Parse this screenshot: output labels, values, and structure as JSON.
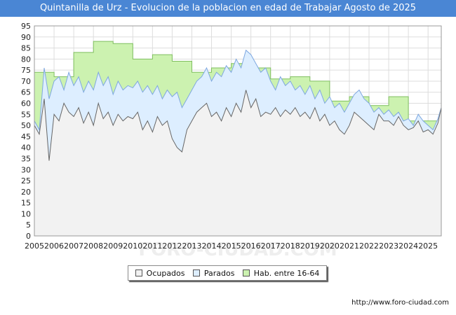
{
  "chart_data": {
    "type": "area",
    "title": "Quintanilla de Urz - Evolucion de la poblacion en edad de Trabajar Agosto de 2025",
    "ylim": [
      0,
      95
    ],
    "yticks": [
      0,
      5,
      10,
      15,
      20,
      25,
      30,
      35,
      40,
      45,
      50,
      55,
      60,
      65,
      70,
      75,
      80,
      85,
      90,
      95
    ],
    "xlim": [
      2005,
      2025.67
    ],
    "xticks": [
      "2005",
      "2006",
      "2007",
      "2008",
      "2009",
      "2010",
      "2011",
      "2012",
      "2013",
      "2014",
      "2015",
      "2016",
      "2017",
      "2018",
      "2019",
      "2020",
      "2021",
      "2022",
      "2023",
      "2024",
      "2025"
    ],
    "grid": true,
    "legend_position": "bottom-center",
    "series": [
      {
        "name": "Hab. entre 16-64",
        "color": "#ccf2b0",
        "stroke": "#7fbf5f",
        "step": true,
        "x": [
          2005,
          2005.5,
          2006,
          2006.5,
          2007,
          2008,
          2009,
          2010,
          2011,
          2012,
          2013,
          2014,
          2015,
          2016,
          2017,
          2018,
          2019,
          2020,
          2021,
          2022,
          2023,
          2024,
          2025.67
        ],
        "values": [
          74,
          74,
          72,
          72,
          83,
          88,
          87,
          80,
          82,
          79,
          74,
          76,
          78,
          76,
          71,
          72,
          70,
          61,
          63,
          59,
          63,
          52,
          52
        ]
      },
      {
        "name": "Parados",
        "color": "#ddeeff",
        "stroke": "#7fa8e0",
        "x": [
          2005,
          2005.25,
          2005.5,
          2005.75,
          2006,
          2006.25,
          2006.5,
          2006.75,
          2007,
          2007.25,
          2007.5,
          2007.75,
          2008,
          2008.25,
          2008.5,
          2008.75,
          2009,
          2009.25,
          2009.5,
          2009.75,
          2010,
          2010.25,
          2010.5,
          2010.75,
          2011,
          2011.25,
          2011.5,
          2011.75,
          2012,
          2012.25,
          2012.5,
          2012.75,
          2013,
          2013.25,
          2013.5,
          2013.75,
          2014,
          2014.25,
          2014.5,
          2014.75,
          2015,
          2015.25,
          2015.5,
          2015.75,
          2016,
          2016.25,
          2016.5,
          2016.75,
          2017,
          2017.25,
          2017.5,
          2017.75,
          2018,
          2018.25,
          2018.5,
          2018.75,
          2019,
          2019.25,
          2019.5,
          2019.75,
          2020,
          2020.25,
          2020.5,
          2020.75,
          2021,
          2021.25,
          2021.5,
          2021.75,
          2022,
          2022.25,
          2022.5,
          2022.75,
          2023,
          2023.25,
          2023.5,
          2023.75,
          2024,
          2024.25,
          2024.5,
          2024.75,
          2025,
          2025.25,
          2025.5,
          2025.67
        ],
        "values": [
          52,
          48,
          76,
          62,
          70,
          72,
          66,
          74,
          68,
          72,
          65,
          70,
          66,
          74,
          68,
          72,
          64,
          70,
          66,
          68,
          67,
          70,
          65,
          68,
          64,
          68,
          62,
          66,
          63,
          65,
          58,
          62,
          66,
          70,
          72,
          76,
          70,
          74,
          72,
          77,
          74,
          80,
          76,
          84,
          82,
          78,
          74,
          76,
          70,
          66,
          72,
          68,
          70,
          66,
          68,
          64,
          68,
          62,
          66,
          60,
          63,
          58,
          60,
          56,
          60,
          64,
          66,
          62,
          60,
          56,
          58,
          55,
          57,
          54,
          56,
          52,
          53,
          50,
          55,
          52,
          50,
          48,
          53,
          58
        ]
      },
      {
        "name": "Ocupados",
        "color": "#f2f2f2",
        "stroke": "#666666",
        "x": [
          2005,
          2005.25,
          2005.5,
          2005.75,
          2006,
          2006.25,
          2006.5,
          2006.75,
          2007,
          2007.25,
          2007.5,
          2007.75,
          2008,
          2008.25,
          2008.5,
          2008.75,
          2009,
          2009.25,
          2009.5,
          2009.75,
          2010,
          2010.25,
          2010.5,
          2010.75,
          2011,
          2011.25,
          2011.5,
          2011.75,
          2012,
          2012.25,
          2012.5,
          2012.75,
          2013,
          2013.25,
          2013.5,
          2013.75,
          2014,
          2014.25,
          2014.5,
          2014.75,
          2015,
          2015.25,
          2015.5,
          2015.75,
          2016,
          2016.25,
          2016.5,
          2016.75,
          2017,
          2017.25,
          2017.5,
          2017.75,
          2018,
          2018.25,
          2018.5,
          2018.75,
          2019,
          2019.25,
          2019.5,
          2019.75,
          2020,
          2020.25,
          2020.5,
          2020.75,
          2021,
          2021.25,
          2021.5,
          2021.75,
          2022,
          2022.25,
          2022.5,
          2022.75,
          2023,
          2023.25,
          2023.5,
          2023.75,
          2024,
          2024.25,
          2024.5,
          2024.75,
          2025,
          2025.25,
          2025.5,
          2025.67
        ],
        "values": [
          50,
          46,
          62,
          34,
          55,
          52,
          60,
          56,
          54,
          58,
          51,
          56,
          50,
          60,
          53,
          56,
          50,
          55,
          52,
          54,
          53,
          56,
          48,
          52,
          47,
          54,
          50,
          52,
          44,
          40,
          38,
          48,
          52,
          56,
          58,
          60,
          54,
          56,
          52,
          58,
          54,
          60,
          56,
          66,
          58,
          62,
          54,
          56,
          55,
          58,
          54,
          57,
          55,
          58,
          54,
          56,
          53,
          58,
          52,
          55,
          50,
          52,
          48,
          46,
          50,
          56,
          54,
          52,
          50,
          48,
          55,
          52,
          52,
          50,
          54,
          50,
          48,
          49,
          52,
          47,
          48,
          46,
          51,
          58
        ]
      }
    ]
  },
  "legend": {
    "ocupados": "Ocupados",
    "parados": "Parados",
    "hab": "Hab. entre 16-64"
  },
  "source": "http://www.foro-ciudad.com",
  "watermark": "FORO-CIUDAD.COM"
}
